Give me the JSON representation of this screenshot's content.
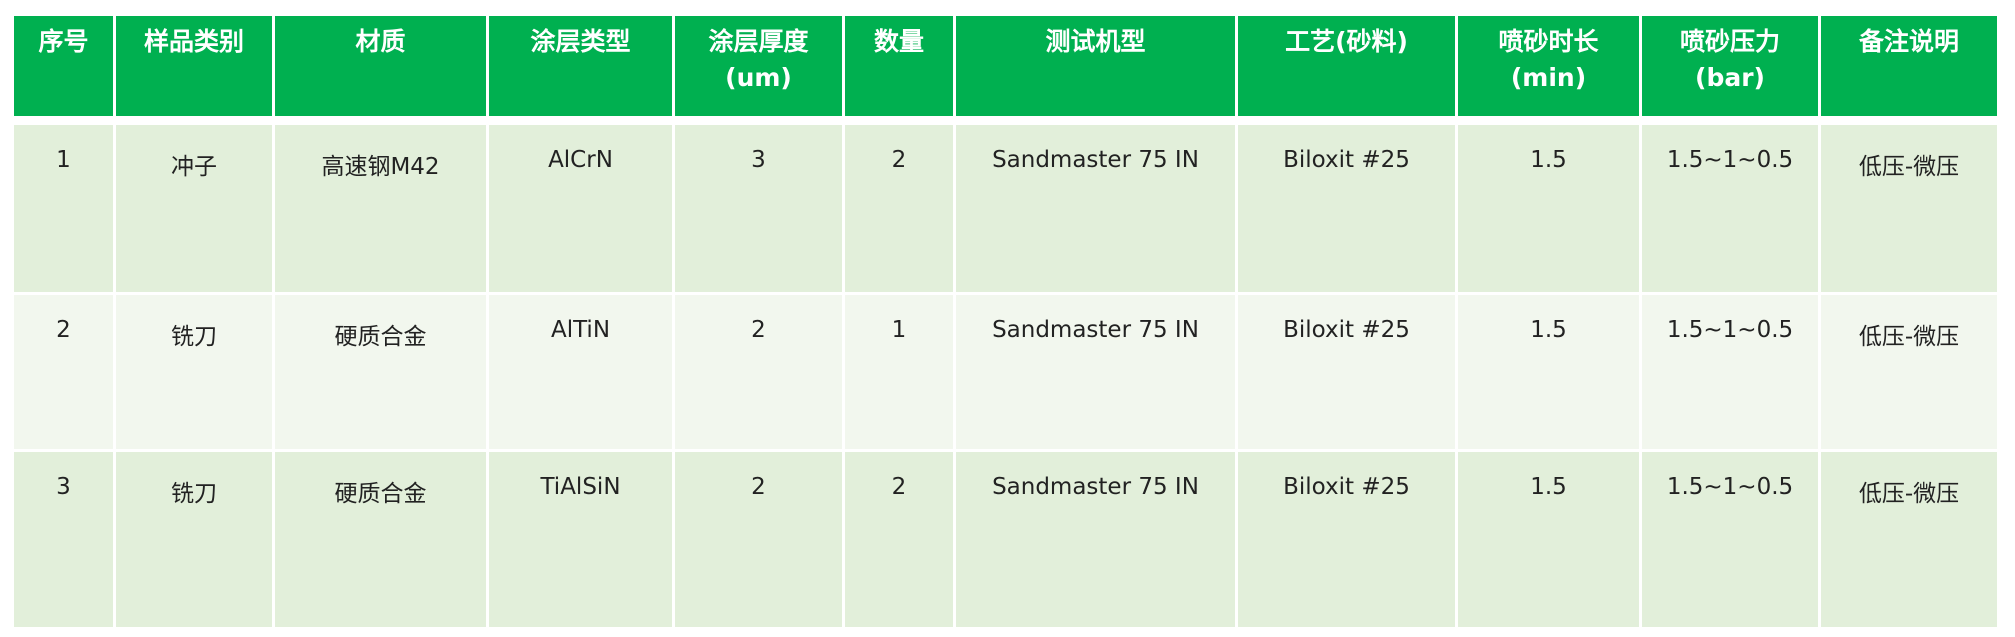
{
  "table": {
    "header_color": "#00b050",
    "row_colors": [
      "#e2efda",
      "#f2f7ee",
      "#e2efda"
    ],
    "columns": [
      {
        "label": "序号",
        "unit": ""
      },
      {
        "label": "样品类别",
        "unit": ""
      },
      {
        "label": "材质",
        "unit": ""
      },
      {
        "label": "涂层类型",
        "unit": ""
      },
      {
        "label": "涂层厚度",
        "unit": "(um)"
      },
      {
        "label": "数量",
        "unit": ""
      },
      {
        "label": "测试机型",
        "unit": ""
      },
      {
        "label": "工艺(砂料)",
        "unit": ""
      },
      {
        "label": "喷砂时长",
        "unit": "(min)"
      },
      {
        "label": "喷砂压力",
        "unit": "(bar)"
      },
      {
        "label": "备注说明",
        "unit": ""
      }
    ],
    "rows": [
      [
        "1",
        "冲子",
        "高速钢M42",
        "AlCrN",
        "3",
        "2",
        "Sandmaster 75 IN",
        "Biloxit #25",
        "1.5",
        "1.5~1~0.5",
        "低压-微压"
      ],
      [
        "2",
        "铣刀",
        "硬质合金",
        "AlTiN",
        "2",
        "1",
        "Sandmaster 75 IN",
        "Biloxit #25",
        "1.5",
        "1.5~1~0.5",
        "低压-微压"
      ],
      [
        "3",
        "铣刀",
        "硬质合金",
        "TiAlSiN",
        "2",
        "2",
        "Sandmaster 75 IN",
        "Biloxit #25",
        "1.5",
        "1.5~1~0.5",
        "低压-微压"
      ]
    ]
  }
}
